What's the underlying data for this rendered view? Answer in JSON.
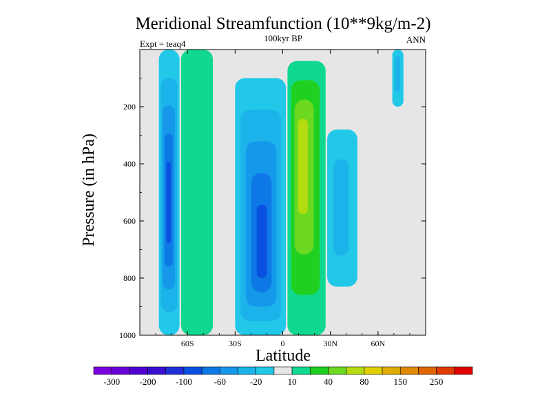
{
  "chart_data": {
    "type": "contour",
    "title": "Meridional Streamfunction (10**9kg/m-2)",
    "subtitle": "100kyr BP",
    "left_label": "Expt = teaq4",
    "right_label": "ANN",
    "xlabel": "Latitude",
    "ylabel": "Pressure (in hPa)",
    "xlim": [
      -90,
      90
    ],
    "ylim": [
      1000,
      0
    ],
    "x_ticks": [
      {
        "value": -60,
        "label": "60S"
      },
      {
        "value": -30,
        "label": "30S"
      },
      {
        "value": 0,
        "label": "0"
      },
      {
        "value": 30,
        "label": "30N"
      },
      {
        "value": 60,
        "label": "60N"
      }
    ],
    "y_ticks": [
      {
        "value": 200,
        "label": "200"
      },
      {
        "value": 400,
        "label": "400"
      },
      {
        "value": 600,
        "label": "600"
      },
      {
        "value": 800,
        "label": "800"
      },
      {
        "value": 1000,
        "label": "1000"
      }
    ],
    "colorbar": {
      "colors": [
        "#7a00e0",
        "#6a00d8",
        "#4f00d0",
        "#3a10d0",
        "#2030d8",
        "#0a50e0",
        "#0e78e6",
        "#1598ea",
        "#1cb2ea",
        "#22c8e8",
        "#e6e6e6",
        "#10d890",
        "#20d020",
        "#6cd820",
        "#b4dc10",
        "#e0d000",
        "#e0ae00",
        "#e08a00",
        "#e06400",
        "#e03a00",
        "#e00000"
      ],
      "labels": [
        {
          "after_index": 0,
          "text": "-300"
        },
        {
          "after_index": 2,
          "text": "-200"
        },
        {
          "after_index": 4,
          "text": "-100"
        },
        {
          "after_index": 6,
          "text": "-60"
        },
        {
          "after_index": 8,
          "text": "-20"
        },
        {
          "after_index": 10,
          "text": "10"
        },
        {
          "after_index": 12,
          "text": "40"
        },
        {
          "after_index": 14,
          "text": "80"
        },
        {
          "after_index": 16,
          "text": "150"
        },
        {
          "after_index": 18,
          "text": "250"
        }
      ]
    },
    "cells": [
      {
        "name": "southern-polar-cell",
        "sign": "negative",
        "lat_range": [
          -78,
          -65
        ],
        "p_range": [
          0,
          1000
        ],
        "peak": -100,
        "peak_lat": -72,
        "peak_p": 550
      },
      {
        "name": "southern-ferrel-cell",
        "sign": "positive",
        "lat_range": [
          -64,
          -44
        ],
        "p_range": [
          0,
          1000
        ],
        "peak": 20,
        "peak_lat": -54,
        "peak_p": 550
      },
      {
        "name": "southern-hadley-cell",
        "sign": "negative",
        "lat_range": [
          -30,
          2
        ],
        "p_range": [
          100,
          1000
        ],
        "peak": -100,
        "peak_lat": -13,
        "peak_p": 720
      },
      {
        "name": "northern-hadley-cell",
        "sign": "positive",
        "lat_range": [
          3,
          27
        ],
        "p_range": [
          40,
          1000
        ],
        "peak": 80,
        "peak_lat": 12,
        "peak_p": 350
      },
      {
        "name": "northern-ferrel-cell",
        "sign": "negative",
        "lat_range": [
          28,
          47
        ],
        "p_range": [
          280,
          830
        ],
        "peak": -20,
        "peak_lat": 36,
        "peak_p": 550
      },
      {
        "name": "northern-polar-cell",
        "sign": "negative",
        "lat_range": [
          69,
          76
        ],
        "p_range": [
          0,
          200
        ],
        "peak": -20,
        "peak_lat": 72,
        "peak_p": 60
      }
    ]
  }
}
